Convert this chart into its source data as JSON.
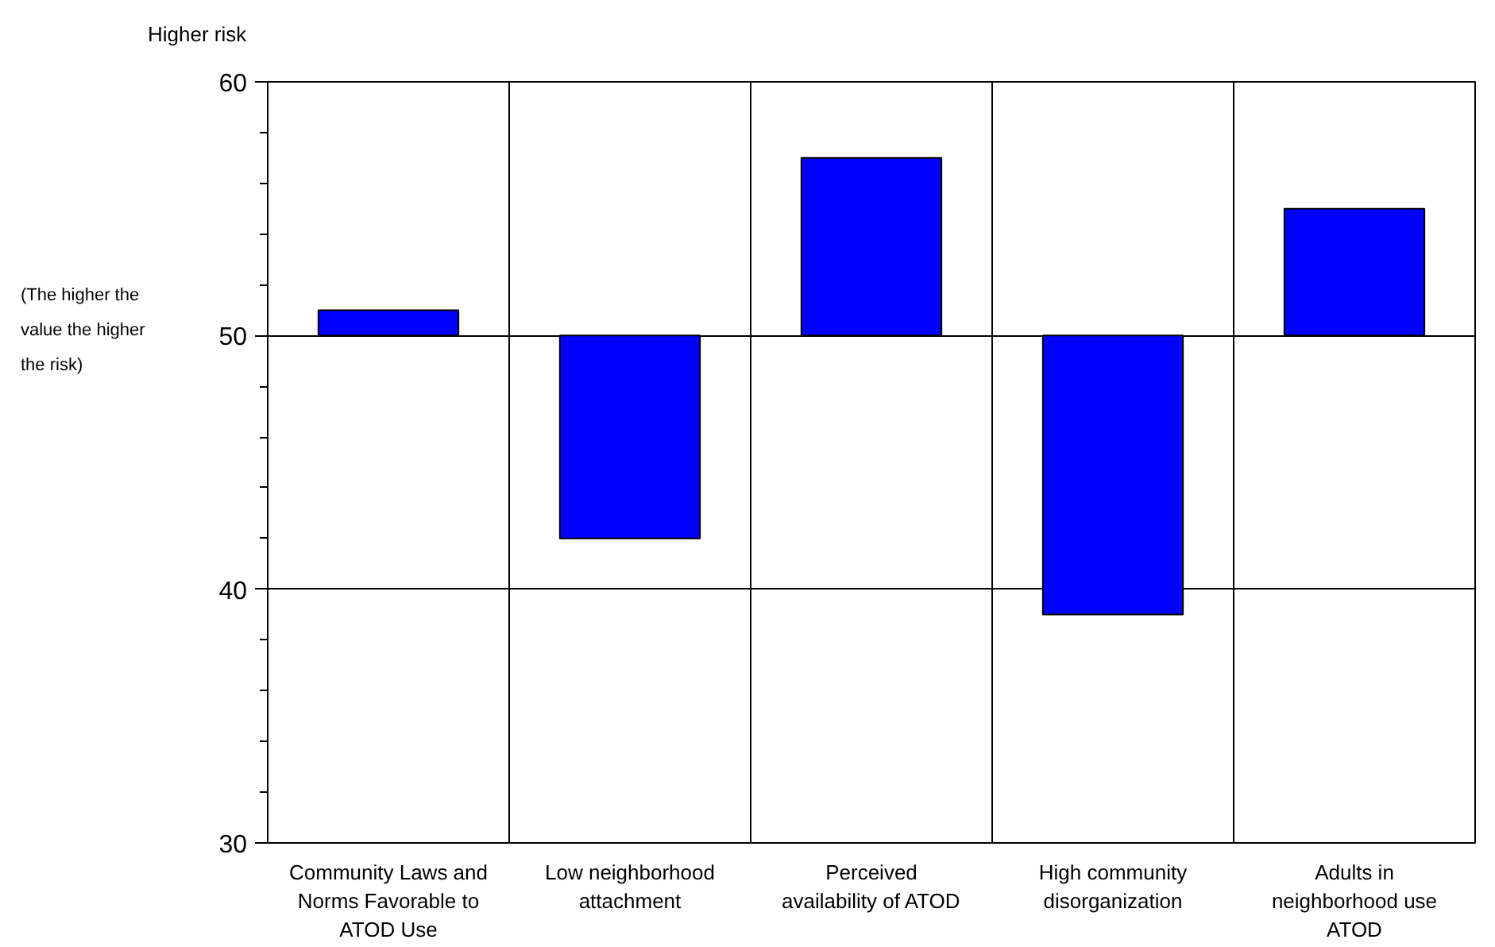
{
  "chart_data": {
    "type": "bar",
    "categories": [
      "Community Laws and Norms Favorable to ATOD Use",
      "Low neighborhood attachment",
      "Perceived availability of ATOD",
      "High community disorganization",
      "Adults in neighborhood use ATOD"
    ],
    "base": [
      50,
      50,
      50,
      50,
      50
    ],
    "values": [
      1,
      -8,
      7,
      -11,
      5
    ],
    "color": "#0000ff",
    "ylim": [
      30,
      60
    ],
    "yticks": [
      30,
      {
        "value": 32,
        "label": null
      },
      {
        "value": 34,
        "label": null
      },
      {
        "value": 36,
        "label": null
      },
      {
        "value": 38,
        "label": null
      },
      40,
      {
        "value": 42,
        "label": null
      },
      {
        "value": 44,
        "label": null
      },
      {
        "value": 46,
        "label": null
      },
      {
        "value": 48,
        "label": null
      },
      50,
      {
        "value": 52,
        "label": null
      },
      {
        "value": 54,
        "label": null
      },
      {
        "value": 56,
        "label": null
      },
      {
        "value": 58,
        "label": null
      },
      60
    ],
    "grid": true,
    "annotations": [
      "Higher risk",
      "(The higher the value the higher the risk)"
    ]
  }
}
